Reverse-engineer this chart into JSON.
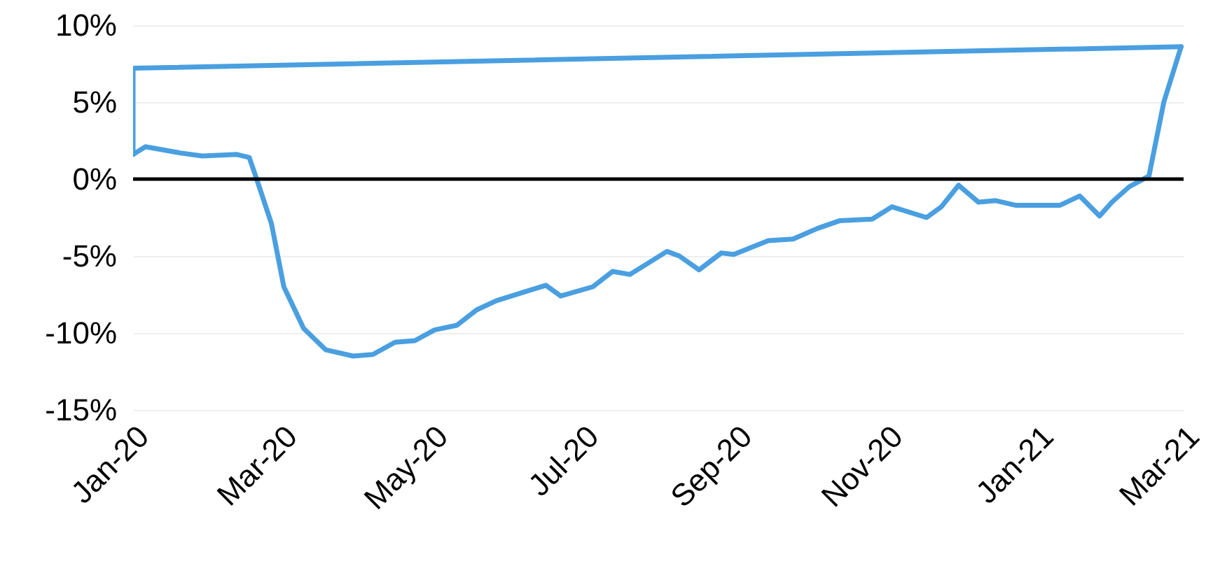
{
  "chart_data": {
    "type": "line",
    "x": [
      "2020-01-01",
      "2020-01-06",
      "2020-01-20",
      "2020-01-29",
      "2020-02-12",
      "2020-02-17",
      "2020-02-20",
      "2020-02-26",
      "2020-03-02",
      "2020-03-10",
      "2020-03-19",
      "2020-03-30",
      "2020-04-07",
      "2020-04-16",
      "2020-04-24",
      "2020-05-02",
      "2020-05-11",
      "2020-05-19",
      "2020-05-27",
      "2020-06-10",
      "2020-06-16",
      "2020-06-22",
      "2020-07-05",
      "2020-07-13",
      "2020-07-20",
      "2020-08-04",
      "2020-08-09",
      "2020-08-17",
      "2020-08-26",
      "2020-08-31",
      "2020-09-14",
      "2020-09-24",
      "2020-10-04",
      "2020-10-13",
      "2020-10-26",
      "2020-11-03",
      "2020-11-17",
      "2020-11-23",
      "2020-11-30",
      "2020-12-08",
      "2020-12-15",
      "2020-12-23",
      "2021-01-10",
      "2021-01-18",
      "2021-01-26",
      "2021-01-31",
      "2021-02-07",
      "2021-02-15",
      "2021-02-21",
      "2021-02-28"
    ],
    "series": [
      {
        "color": "#4a9fe0",
        "values": [
          1.6,
          2.1,
          1.7,
          1.5,
          1.6,
          1.4,
          0,
          -2.9,
          -7,
          -9.7,
          -11.1,
          -11.5,
          -11.4,
          -10.6,
          -10.5,
          -9.8,
          -9.5,
          -8.5,
          -7.9,
          -7.2,
          -6.9,
          -7.6,
          -7.0,
          -6.0,
          -6.2,
          -4.7,
          -5.0,
          -5.9,
          -4.8,
          -4.9,
          -4.0,
          -3.9,
          -3.2,
          -2.7,
          -2.6,
          -1.8,
          -2.5,
          -1.8,
          -0.4,
          -1.5,
          -1.4,
          -1.7,
          -1.7,
          -1.1,
          -2.4,
          -1.5,
          -0.5,
          0.2,
          5.0,
          8.6
        ]
      },
      {
        "color": "#4a9fe0",
        "x": [
          "2021-02-28",
          "2020-01-01",
          "2020-01-01"
        ],
        "values": [
          8.6,
          7.2,
          1.6
        ]
      }
    ],
    "xlim": [
      "2020-01-01",
      "2021-03-01"
    ],
    "xticks": [
      {
        "value": "2020-01-01",
        "label": "Jan-20"
      },
      {
        "value": "2020-03-01",
        "label": "Mar-20"
      },
      {
        "value": "2020-05-01",
        "label": "May-20"
      },
      {
        "value": "2020-07-01",
        "label": "Jul-20"
      },
      {
        "value": "2020-09-01",
        "label": "Sep-20"
      },
      {
        "value": "2020-11-01",
        "label": "Nov-20"
      },
      {
        "value": "2021-01-01",
        "label": "Jan-21"
      },
      {
        "value": "2021-03-01",
        "label": "Mar-21"
      }
    ],
    "ylim": [
      -15,
      10
    ],
    "yticks": [
      {
        "value": -15,
        "label": "-15%"
      },
      {
        "value": -10,
        "label": "-10%"
      },
      {
        "value": -5,
        "label": "-5%"
      },
      {
        "value": 0,
        "label": "0%"
      },
      {
        "value": 5,
        "label": "5%"
      },
      {
        "value": 10,
        "label": "10%"
      }
    ],
    "grid": "y",
    "ref_lines": [
      {
        "axis": "y",
        "value": 0,
        "color": "#000000"
      }
    ]
  }
}
